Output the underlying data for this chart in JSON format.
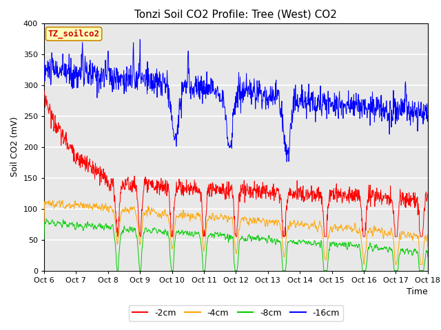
{
  "title": "Tonzi Soil CO2 Profile: Tree (West) CO2",
  "ylabel": "Soil CO2 (mV)",
  "xlabel": "Time",
  "watermark": "TZ_soilco2",
  "ylim": [
    0,
    400
  ],
  "yticks": [
    0,
    50,
    100,
    150,
    200,
    250,
    300,
    350,
    400
  ],
  "xtick_labels": [
    "Oct 6",
    "Oct 7",
    "Oct 8",
    "Oct 9",
    "Oct 10",
    "Oct 11",
    "Oct 12",
    "Oct 13",
    "Oct 14",
    "Oct 15",
    "Oct 16",
    "Oct 17",
    "Oct 18"
  ],
  "colors": {
    "2cm": "#ff0000",
    "4cm": "#ffa500",
    "8cm": "#00cc00",
    "16cm": "#0000ff"
  },
  "legend_labels": [
    "-2cm",
    "-4cm",
    "-8cm",
    "-16cm"
  ],
  "fig_bg_color": "#ffffff",
  "plot_bg_color": "#e8e8e8",
  "grid_color": "#ffffff",
  "title_fontsize": 11,
  "axis_label_fontsize": 9,
  "tick_fontsize": 8,
  "legend_fontsize": 9,
  "watermark_fontsize": 9
}
